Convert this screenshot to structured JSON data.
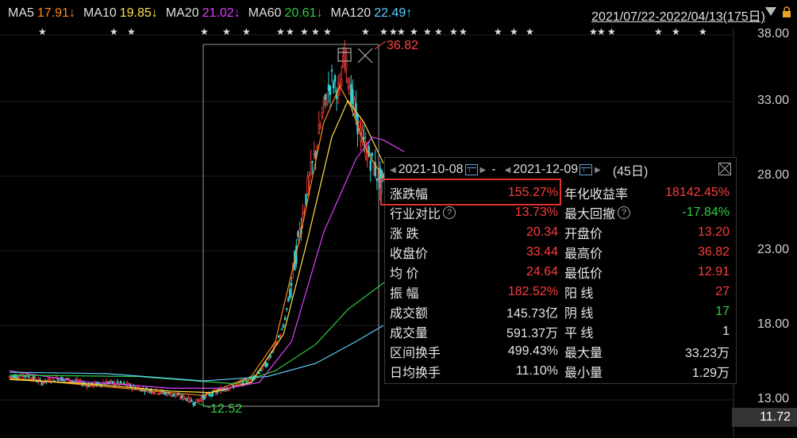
{
  "ma_legend": [
    {
      "label": "MA5",
      "value": "17.91↓",
      "color": "#ff8a1c"
    },
    {
      "label": "MA10",
      "value": "19.85↓",
      "color": "#ffe24a"
    },
    {
      "label": "MA20",
      "value": "21.02↓",
      "color": "#e040fb"
    },
    {
      "label": "MA60",
      "value": "20.61↓",
      "color": "#2ecc40"
    },
    {
      "label": "MA120",
      "value": "22.49↑",
      "color": "#5ed0ff"
    }
  ],
  "date_range": "2021/07/22-2022/04/13(175日)",
  "y_ticks": [
    "38.00",
    "33.00",
    "28.00",
    "23.00",
    "18.00",
    "13.00"
  ],
  "last_price": "11.72",
  "high_label": "36.82",
  "low_label": "12.52",
  "panel": {
    "start_date": "2021-10-08",
    "separator": "-",
    "end_date": "2021-12-09",
    "days": "(45日)",
    "left": [
      {
        "label": "涨跌幅",
        "value": "155.27%",
        "color": "red"
      },
      {
        "label": "行业对比",
        "value": "13.73%",
        "color": "red",
        "help": "?"
      },
      {
        "label": "涨 跌",
        "value": "20.34",
        "color": "red"
      },
      {
        "label": "收盘价",
        "value": "33.44",
        "color": "red"
      },
      {
        "label": "均 价",
        "value": "24.64",
        "color": "red"
      },
      {
        "label": "振 幅",
        "value": "182.52%",
        "color": "red"
      },
      {
        "label": "成交额",
        "value": "145.73亿",
        "color": "white"
      },
      {
        "label": "成交量",
        "value": "591.37万",
        "color": "white"
      },
      {
        "label": "区间换手",
        "value": "499.43%",
        "color": "white"
      },
      {
        "label": "日均换手",
        "value": "11.10%",
        "color": "white"
      }
    ],
    "right": [
      {
        "label": "年化收益率",
        "value": "18142.45%",
        "color": "red"
      },
      {
        "label": "最大回撤",
        "value": "-17.84%",
        "color": "green",
        "help": "?"
      },
      {
        "label": "开盘价",
        "value": "13.20",
        "color": "red"
      },
      {
        "label": "最高价",
        "value": "36.82",
        "color": "red"
      },
      {
        "label": "最低价",
        "value": "12.91",
        "color": "red"
      },
      {
        "label": "阳 线",
        "value": "27",
        "color": "red"
      },
      {
        "label": "阴 线",
        "value": "17",
        "color": "green"
      },
      {
        "label": "平 线",
        "value": "1",
        "color": "white"
      },
      {
        "label": "最大量",
        "value": "33.23万",
        "color": "white"
      },
      {
        "label": "最小量",
        "value": "1.29万",
        "color": "white"
      }
    ]
  },
  "chart_data": {
    "type": "candlestick",
    "y_range": [
      13,
      38
    ],
    "highlight_range": [
      "2021-10-08",
      "2021-12-09"
    ],
    "price_path": [
      [
        0,
        14.6
      ],
      [
        10,
        14.7
      ],
      [
        20,
        14.2
      ],
      [
        30,
        14.5
      ],
      [
        40,
        14.3
      ],
      [
        50,
        14.0
      ],
      [
        60,
        14.2
      ],
      [
        70,
        14.1
      ],
      [
        80,
        13.8
      ],
      [
        90,
        13.6
      ],
      [
        100,
        13.4
      ],
      [
        110,
        13.1
      ],
      [
        115,
        12.8
      ],
      [
        120,
        13.2
      ],
      [
        130,
        13.6
      ],
      [
        140,
        14.0
      ],
      [
        150,
        14.4
      ],
      [
        160,
        15.5
      ],
      [
        170,
        18.0
      ],
      [
        175,
        21.0
      ],
      [
        180,
        24.5
      ],
      [
        185,
        27.5
      ],
      [
        190,
        30.0
      ],
      [
        195,
        33.0
      ],
      [
        200,
        35.0
      ],
      [
        205,
        34.0
      ],
      [
        208,
        36.8
      ],
      [
        212,
        34.0
      ],
      [
        216,
        32.0
      ],
      [
        220,
        30.5
      ],
      [
        224,
        29.5
      ],
      [
        228,
        28.5
      ],
      [
        232,
        27.8
      ]
    ],
    "ma_series": [
      {
        "name": "MA5",
        "color": "#ff8a1c",
        "points": [
          [
            0,
            14.5
          ],
          [
            50,
            14.0
          ],
          [
            100,
            13.5
          ],
          [
            120,
            13.3
          ],
          [
            150,
            14.6
          ],
          [
            165,
            17.0
          ],
          [
            180,
            24.0
          ],
          [
            195,
            32.0
          ],
          [
            205,
            34.5
          ],
          [
            212,
            33.0
          ],
          [
            222,
            30.0
          ],
          [
            232,
            28.2
          ]
        ]
      },
      {
        "name": "MA10",
        "color": "#ffe24a",
        "points": [
          [
            0,
            14.4
          ],
          [
            50,
            14.1
          ],
          [
            100,
            13.6
          ],
          [
            125,
            13.5
          ],
          [
            150,
            14.2
          ],
          [
            170,
            17.5
          ],
          [
            185,
            24.0
          ],
          [
            200,
            31.0
          ],
          [
            210,
            33.5
          ],
          [
            220,
            32.0
          ],
          [
            232,
            29.2
          ]
        ]
      },
      {
        "name": "MA20",
        "color": "#e040fb",
        "points": [
          [
            0,
            15.0
          ],
          [
            40,
            14.3
          ],
          [
            100,
            13.8
          ],
          [
            135,
            13.8
          ],
          [
            155,
            14.2
          ],
          [
            175,
            17.0
          ],
          [
            195,
            24.5
          ],
          [
            215,
            29.5
          ],
          [
            225,
            31.0
          ],
          [
            232,
            30.8
          ],
          [
            245,
            30.0
          ]
        ]
      },
      {
        "name": "MA60",
        "color": "#2ecc40",
        "points": [
          [
            0,
            14.7
          ],
          [
            80,
            14.6
          ],
          [
            140,
            14.1
          ],
          [
            165,
            15.0
          ],
          [
            190,
            16.8
          ],
          [
            210,
            19.2
          ],
          [
            232,
            21.0
          ],
          [
            245,
            21.8
          ]
        ]
      },
      {
        "name": "MA120",
        "color": "#5ed0ff",
        "points": [
          [
            0,
            14.9
          ],
          [
            60,
            14.8
          ],
          [
            120,
            14.3
          ],
          [
            160,
            14.6
          ],
          [
            190,
            15.5
          ],
          [
            215,
            17.0
          ],
          [
            232,
            18.1
          ]
        ]
      }
    ]
  }
}
